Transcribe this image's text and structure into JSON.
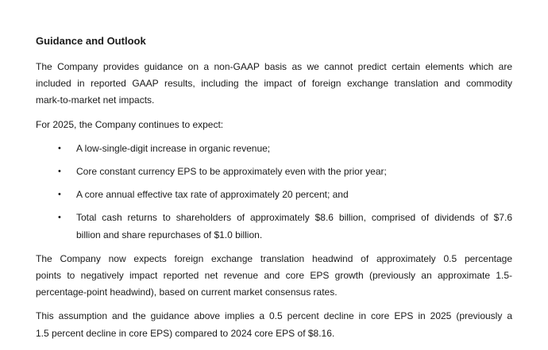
{
  "page": {
    "background": "#ffffff",
    "text_color": "#1a1a1a"
  },
  "document": {
    "heading": "Guidance and Outlook",
    "bullet_marker": "•",
    "paragraph1": {
      "line1": "The Company provides guidance on a non-GAAP basis as we cannot predict certain elements which are",
      "line2": "included in reported GAAP results, including the impact of foreign exchange translation and commodity",
      "line3": "mark-to-market net impacts."
    },
    "paragraph2": {
      "line1": "For 2025, the Company continues to expect:"
    },
    "bullets": {
      "item1": {
        "line1": "A low-single-digit increase in organic revenue;"
      },
      "item2": {
        "line1": "Core constant currency EPS to be approximately even with the prior year;"
      },
      "item3": {
        "line1": "A core annual effective tax rate of approximately 20 percent; and"
      },
      "item4": {
        "line1": "Total cash returns to shareholders of approximately $8.6 billion, comprised of dividends of $7.6",
        "line2": "billion and share repurchases of $1.0 billion."
      }
    },
    "paragraph3": {
      "line1": "The Company now expects foreign exchange translation headwind of approximately 0.5 percentage",
      "line2": "points to negatively impact reported net revenue and core EPS growth (previously an approximate 1.5-",
      "line3": "percentage-point headwind), based on current market consensus rates."
    },
    "paragraph4": {
      "line1": "This assumption and the guidance above implies a 0.5 percent decline in core EPS in 2025 (previously a",
      "line2": "1.5 percent decline in core EPS) compared to 2024 core EPS of $8.16."
    }
  }
}
